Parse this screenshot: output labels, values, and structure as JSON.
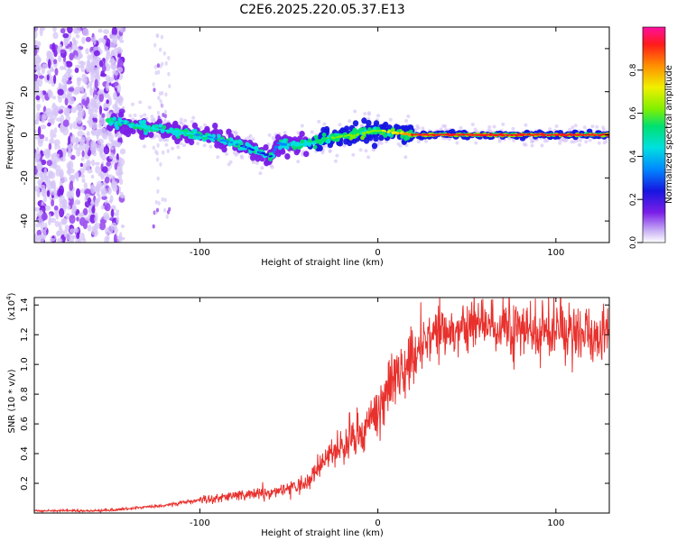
{
  "title": "C2E6.2025.220.05.37.E13",
  "colors": {
    "snr_line": "#e8312d",
    "accent_points": "#6a0dde"
  },
  "chart_data": [
    {
      "type": "heatmap",
      "xlabel": "Height of straight line (km)",
      "ylabel": "Frequency (Hz)",
      "xlim": [
        -193,
        130
      ],
      "ylim": [
        -50,
        50
      ],
      "x_ticks": [
        "-100",
        "0",
        "100"
      ],
      "x_tick_values": [
        -100,
        0,
        100
      ],
      "y_ticks": [
        "40",
        "20",
        "0",
        "-20",
        "-40"
      ],
      "y_tick_values": [
        40,
        20,
        0,
        -20,
        -40
      ],
      "colorbar": {
        "label": "Normalized spectral amplitude",
        "range": [
          0,
          1
        ],
        "ticks": [
          "0.0",
          "0.2",
          "0.4",
          "0.6",
          "0.8"
        ],
        "tick_values": [
          0,
          0.2,
          0.4,
          0.6,
          0.8
        ]
      },
      "ridge": {
        "x": [
          -155,
          -140,
          -120,
          -100,
          -80,
          -60,
          -56,
          -45,
          -30,
          -15,
          0,
          10,
          20,
          50,
          80,
          100,
          130
        ],
        "freq": [
          7,
          5,
          2,
          0,
          -4,
          -10,
          -4,
          -5,
          -2,
          0,
          2,
          1,
          0,
          0,
          0,
          0,
          0
        ],
        "amplitude": [
          0.45,
          0.45,
          0.5,
          0.45,
          0.35,
          0.3,
          0.4,
          0.45,
          0.6,
          0.7,
          0.7,
          0.8,
          0.95,
          1.0,
          1.0,
          1.0,
          1.0
        ]
      },
      "noise_region": {
        "x_range": [
          -193,
          -143
        ],
        "freq_range": [
          -50,
          50
        ]
      }
    },
    {
      "type": "line",
      "xlabel": "Height of straight line (km)",
      "ylabel": "SNR (10 * v/v)",
      "y_scale_label": "(x10",
      "y_scale_exp": "4",
      "y_scale_close": ")",
      "xlim": [
        -193,
        130
      ],
      "ylim": [
        0,
        1.45
      ],
      "x_ticks": [
        "-100",
        "0",
        "100"
      ],
      "x_tick_values": [
        -100,
        0,
        100
      ],
      "y_ticks": [
        "1.4",
        "1.2",
        "1.0",
        "0.8",
        "0.6",
        "0.4",
        "0.2"
      ],
      "y_tick_values": [
        1.4,
        1.2,
        1.0,
        0.8,
        0.6,
        0.4,
        0.2
      ],
      "series": [
        {
          "x": [
            -193,
            -160,
            -150,
            -140,
            -120,
            -110,
            -100,
            -90,
            -80,
            -70,
            -60,
            -50,
            -40,
            -30,
            -20,
            -10,
            0,
            10,
            20,
            30,
            40,
            50,
            60,
            70,
            80,
            90,
            100,
            110,
            120,
            130
          ],
          "values": [
            0.015,
            0.015,
            0.02,
            0.03,
            0.05,
            0.07,
            0.09,
            0.1,
            0.12,
            0.13,
            0.14,
            0.16,
            0.2,
            0.35,
            0.45,
            0.55,
            0.68,
            0.88,
            1.08,
            1.18,
            1.22,
            1.24,
            1.25,
            1.24,
            1.24,
            1.23,
            1.23,
            1.22,
            1.2,
            1.2
          ]
        }
      ]
    }
  ]
}
